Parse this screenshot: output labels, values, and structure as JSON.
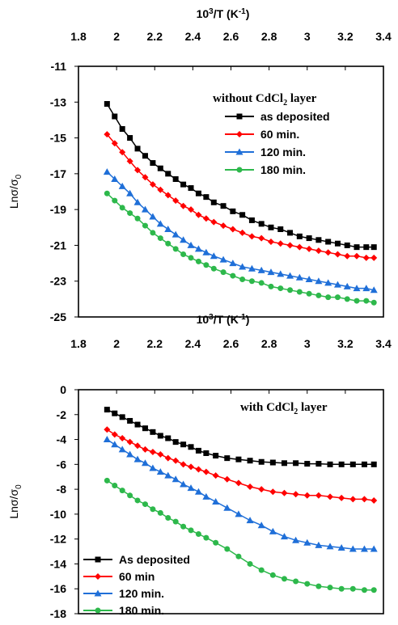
{
  "chart_data": [
    {
      "type": "line",
      "annotation_pre": "without CdCl",
      "annotation_sub": "2",
      "annotation_post": " layer",
      "xlabel_pre": "10",
      "xlabel_sup": "3",
      "xlabel_mid": "/T (K",
      "xlabel_sup2": "-1",
      "xlabel_post": ")",
      "ylabel_pre": "Lnσ/σ",
      "ylabel_sub": "0",
      "x_ticks": [
        "1.8",
        "2",
        "2.2",
        "2.4",
        "2.6",
        "2.8",
        "3",
        "3.2",
        "3.4"
      ],
      "y_ticks": [
        "-11",
        "-13",
        "-15",
        "-17",
        "-19",
        "-21",
        "-23",
        "-25"
      ],
      "xlim": [
        1.8,
        3.4
      ],
      "ylim": [
        -25,
        -11
      ],
      "legend_position": "top-right",
      "grid": false,
      "series": [
        {
          "name": "as deposited",
          "color": "#000000",
          "marker": "square",
          "x": [
            1.95,
            1.99,
            2.03,
            2.07,
            2.11,
            2.15,
            2.19,
            2.23,
            2.27,
            2.31,
            2.35,
            2.39,
            2.43,
            2.47,
            2.51,
            2.56,
            2.61,
            2.66,
            2.71,
            2.76,
            2.81,
            2.86,
            2.91,
            2.96,
            3.01,
            3.06,
            3.11,
            3.16,
            3.21,
            3.26,
            3.31,
            3.35
          ],
          "y": [
            -13.1,
            -13.8,
            -14.5,
            -15.0,
            -15.6,
            -16.0,
            -16.4,
            -16.7,
            -17.0,
            -17.3,
            -17.6,
            -17.8,
            -18.1,
            -18.3,
            -18.6,
            -18.8,
            -19.1,
            -19.3,
            -19.6,
            -19.8,
            -20.0,
            -20.1,
            -20.3,
            -20.5,
            -20.6,
            -20.7,
            -20.8,
            -20.9,
            -21.0,
            -21.1,
            -21.1,
            -21.1
          ]
        },
        {
          "name": "60 min.",
          "color": "#ff0000",
          "marker": "diamond",
          "x": [
            1.95,
            1.99,
            2.03,
            2.07,
            2.11,
            2.15,
            2.19,
            2.23,
            2.27,
            2.31,
            2.35,
            2.39,
            2.43,
            2.47,
            2.51,
            2.56,
            2.61,
            2.66,
            2.71,
            2.76,
            2.81,
            2.86,
            2.91,
            2.96,
            3.01,
            3.06,
            3.11,
            3.16,
            3.21,
            3.26,
            3.31,
            3.35
          ],
          "y": [
            -14.8,
            -15.3,
            -15.8,
            -16.3,
            -16.8,
            -17.2,
            -17.6,
            -17.9,
            -18.2,
            -18.5,
            -18.8,
            -19.0,
            -19.3,
            -19.5,
            -19.7,
            -19.9,
            -20.1,
            -20.3,
            -20.5,
            -20.6,
            -20.8,
            -20.9,
            -21.0,
            -21.1,
            -21.2,
            -21.3,
            -21.4,
            -21.5,
            -21.6,
            -21.6,
            -21.7,
            -21.7
          ]
        },
        {
          "name": "120 min.",
          "color": "#1f6fd8",
          "marker": "triangle",
          "x": [
            1.95,
            1.99,
            2.03,
            2.07,
            2.11,
            2.15,
            2.19,
            2.23,
            2.27,
            2.31,
            2.35,
            2.39,
            2.43,
            2.47,
            2.51,
            2.56,
            2.61,
            2.66,
            2.71,
            2.76,
            2.81,
            2.86,
            2.91,
            2.96,
            3.01,
            3.06,
            3.11,
            3.16,
            3.21,
            3.26,
            3.31,
            3.35
          ],
          "y": [
            -16.9,
            -17.3,
            -17.7,
            -18.1,
            -18.6,
            -19.0,
            -19.4,
            -19.8,
            -20.1,
            -20.4,
            -20.7,
            -21.0,
            -21.2,
            -21.4,
            -21.6,
            -21.8,
            -22.0,
            -22.2,
            -22.3,
            -22.4,
            -22.5,
            -22.6,
            -22.7,
            -22.8,
            -22.9,
            -23.0,
            -23.1,
            -23.2,
            -23.3,
            -23.4,
            -23.4,
            -23.5
          ]
        },
        {
          "name": "180 min.",
          "color": "#2db84b",
          "marker": "circle",
          "x": [
            1.95,
            1.99,
            2.03,
            2.07,
            2.11,
            2.15,
            2.19,
            2.23,
            2.27,
            2.31,
            2.35,
            2.39,
            2.43,
            2.47,
            2.51,
            2.56,
            2.61,
            2.66,
            2.71,
            2.76,
            2.81,
            2.86,
            2.91,
            2.96,
            3.01,
            3.06,
            3.11,
            3.16,
            3.21,
            3.26,
            3.31,
            3.35
          ],
          "y": [
            -18.1,
            -18.5,
            -18.9,
            -19.2,
            -19.5,
            -19.9,
            -20.3,
            -20.6,
            -20.9,
            -21.2,
            -21.5,
            -21.7,
            -21.9,
            -22.1,
            -22.3,
            -22.5,
            -22.7,
            -22.9,
            -23.0,
            -23.1,
            -23.3,
            -23.4,
            -23.5,
            -23.6,
            -23.7,
            -23.8,
            -23.9,
            -23.9,
            -24.0,
            -24.1,
            -24.1,
            -24.2
          ]
        }
      ]
    },
    {
      "type": "line",
      "annotation_pre": "with CdCl",
      "annotation_sub": "2",
      "annotation_post": " layer",
      "xlabel_pre": "10",
      "xlabel_sup": "3",
      "xlabel_mid": "/T (K",
      "xlabel_sup2": "-1",
      "xlabel_post": ")",
      "ylabel_pre": "Lnσ/σ",
      "ylabel_sub": "0",
      "x_ticks": [
        "1.8",
        "2",
        "2.2",
        "2.4",
        "2.6",
        "2.8",
        "3",
        "3.2",
        "3.4"
      ],
      "y_ticks": [
        "0",
        "-2",
        "-4",
        "-6",
        "-8",
        "-10",
        "-12",
        "-14",
        "-16",
        "-18"
      ],
      "xlim": [
        1.8,
        3.4
      ],
      "ylim": [
        -18,
        0
      ],
      "legend_position": "bottom-left",
      "grid": false,
      "series": [
        {
          "name": "As deposited",
          "color": "#000000",
          "marker": "square",
          "x": [
            1.95,
            1.99,
            2.03,
            2.07,
            2.11,
            2.15,
            2.19,
            2.23,
            2.27,
            2.31,
            2.35,
            2.39,
            2.43,
            2.47,
            2.52,
            2.58,
            2.64,
            2.7,
            2.76,
            2.82,
            2.88,
            2.94,
            3.0,
            3.06,
            3.12,
            3.18,
            3.24,
            3.3,
            3.35
          ],
          "y": [
            -1.6,
            -1.9,
            -2.2,
            -2.5,
            -2.8,
            -3.1,
            -3.4,
            -3.7,
            -3.9,
            -4.2,
            -4.4,
            -4.6,
            -4.9,
            -5.1,
            -5.3,
            -5.5,
            -5.6,
            -5.7,
            -5.8,
            -5.85,
            -5.9,
            -5.9,
            -5.95,
            -5.95,
            -6.0,
            -6.0,
            -6.0,
            -6.0,
            -6.0
          ]
        },
        {
          "name": "60 min",
          "color": "#ff0000",
          "marker": "diamond",
          "x": [
            1.95,
            1.99,
            2.03,
            2.07,
            2.11,
            2.15,
            2.19,
            2.23,
            2.27,
            2.31,
            2.35,
            2.39,
            2.43,
            2.47,
            2.52,
            2.58,
            2.64,
            2.7,
            2.76,
            2.82,
            2.88,
            2.94,
            3.0,
            3.06,
            3.12,
            3.18,
            3.24,
            3.3,
            3.35
          ],
          "y": [
            -3.2,
            -3.6,
            -3.9,
            -4.2,
            -4.5,
            -4.8,
            -5.0,
            -5.2,
            -5.5,
            -5.7,
            -6.0,
            -6.2,
            -6.4,
            -6.6,
            -6.9,
            -7.2,
            -7.5,
            -7.8,
            -8.0,
            -8.2,
            -8.3,
            -8.4,
            -8.5,
            -8.5,
            -8.6,
            -8.7,
            -8.8,
            -8.8,
            -8.9
          ]
        },
        {
          "name": "120 min.",
          "color": "#1f6fd8",
          "marker": "triangle",
          "x": [
            1.95,
            1.99,
            2.03,
            2.07,
            2.11,
            2.15,
            2.19,
            2.23,
            2.27,
            2.31,
            2.35,
            2.39,
            2.43,
            2.47,
            2.52,
            2.58,
            2.64,
            2.7,
            2.76,
            2.82,
            2.88,
            2.94,
            3.0,
            3.06,
            3.12,
            3.18,
            3.24,
            3.3,
            3.35
          ],
          "y": [
            -4.0,
            -4.4,
            -4.8,
            -5.2,
            -5.6,
            -5.9,
            -6.3,
            -6.6,
            -6.9,
            -7.2,
            -7.6,
            -7.9,
            -8.2,
            -8.6,
            -9.0,
            -9.5,
            -10.0,
            -10.5,
            -10.9,
            -11.4,
            -11.8,
            -12.1,
            -12.3,
            -12.5,
            -12.6,
            -12.7,
            -12.8,
            -12.8,
            -12.8
          ]
        },
        {
          "name": "180 min.",
          "color": "#2db84b",
          "marker": "circle",
          "x": [
            1.95,
            1.99,
            2.03,
            2.07,
            2.11,
            2.15,
            2.19,
            2.23,
            2.27,
            2.31,
            2.35,
            2.39,
            2.43,
            2.47,
            2.52,
            2.58,
            2.64,
            2.7,
            2.76,
            2.82,
            2.88,
            2.94,
            3.0,
            3.06,
            3.12,
            3.18,
            3.24,
            3.3,
            3.35
          ],
          "y": [
            -7.3,
            -7.7,
            -8.1,
            -8.5,
            -8.9,
            -9.2,
            -9.6,
            -9.9,
            -10.3,
            -10.6,
            -11.0,
            -11.3,
            -11.6,
            -11.9,
            -12.3,
            -12.8,
            -13.4,
            -14.0,
            -14.5,
            -14.9,
            -15.2,
            -15.4,
            -15.6,
            -15.8,
            -15.9,
            -16.0,
            -16.0,
            -16.1,
            -16.1
          ]
        }
      ]
    }
  ]
}
